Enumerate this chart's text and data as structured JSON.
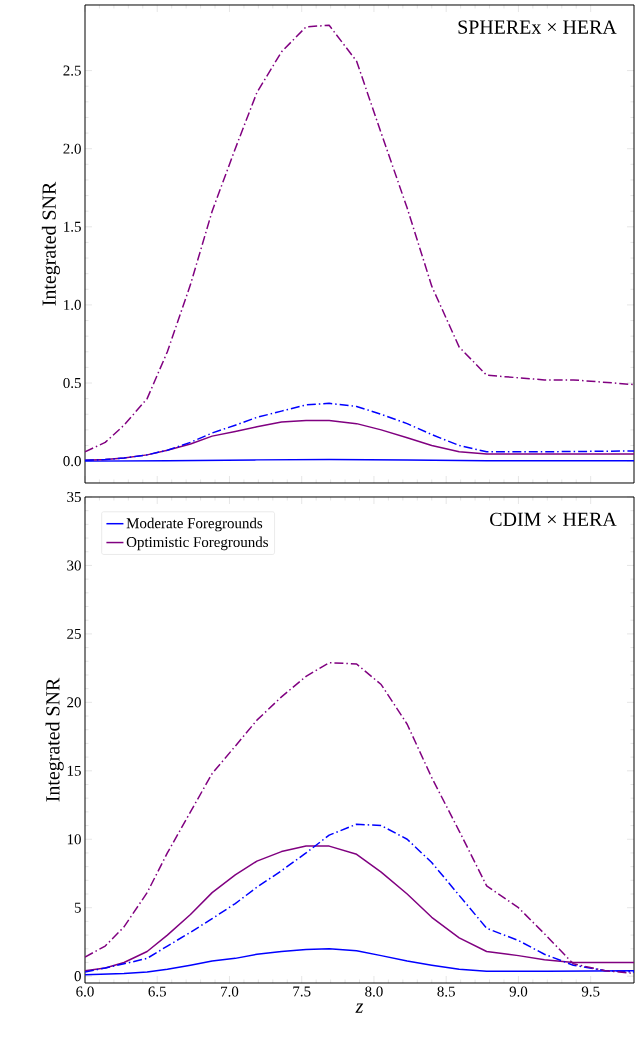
{
  "chart_data": [
    {
      "type": "line",
      "ylabel": "Integrated SNR",
      "annotations": [
        "SPHEREx × HERA"
      ],
      "xlim": [
        6.0,
        9.8
      ],
      "ylim": [
        -0.14,
        2.92
      ],
      "xticks": [
        {
          "value": 6.0,
          "label": null
        },
        {
          "value": 6.5,
          "label": null
        },
        {
          "value": 7.0,
          "label": null
        },
        {
          "value": 7.5,
          "label": null
        },
        {
          "value": 8.0,
          "label": null
        },
        {
          "value": 8.5,
          "label": null
        },
        {
          "value": 9.0,
          "label": null
        },
        {
          "value": 9.5,
          "label": null
        }
      ],
      "yticks": [
        {
          "value": 0,
          "label": "0.0"
        },
        {
          "value": 0.5,
          "label": "0.5"
        },
        {
          "value": 1.0,
          "label": "1.0"
        },
        {
          "value": 1.5,
          "label": "1.5"
        },
        {
          "value": 2.0,
          "label": "2.0"
        },
        {
          "value": 2.5,
          "label": "2.5"
        }
      ],
      "tick_labels": "y",
      "grid": false,
      "legend": false,
      "marker": "none",
      "series": [
        {
          "color": "#0000ff",
          "line_style": "solid",
          "x": [
            6.0,
            6.57,
            7.19,
            7.69,
            8.23,
            8.78,
            9.8
          ],
          "values": [
            0.0,
            0.003,
            0.008,
            0.01,
            0.007,
            0.002,
            0.002
          ]
        },
        {
          "color": "#800080",
          "line_style": "solid",
          "x": [
            6.0,
            6.14,
            6.27,
            6.43,
            6.57,
            6.73,
            6.88,
            7.04,
            7.19,
            7.36,
            7.53,
            7.69,
            7.88,
            8.05,
            8.23,
            8.4,
            8.59,
            8.78,
            9.8
          ],
          "values": [
            0.005,
            0.01,
            0.02,
            0.04,
            0.07,
            0.11,
            0.16,
            0.19,
            0.22,
            0.25,
            0.26,
            0.26,
            0.24,
            0.2,
            0.15,
            0.1,
            0.06,
            0.045,
            0.045
          ]
        },
        {
          "color": "#0000ff",
          "line_style": "dashdot",
          "x": [
            6.0,
            6.14,
            6.27,
            6.43,
            6.57,
            6.73,
            6.88,
            7.04,
            7.19,
            7.36,
            7.53,
            7.69,
            7.88,
            8.05,
            8.23,
            8.4,
            8.59,
            8.78,
            9.18,
            9.8
          ],
          "values": [
            0.005,
            0.01,
            0.02,
            0.04,
            0.07,
            0.12,
            0.18,
            0.23,
            0.28,
            0.32,
            0.36,
            0.37,
            0.35,
            0.3,
            0.24,
            0.17,
            0.1,
            0.06,
            0.06,
            0.065
          ]
        },
        {
          "color": "#800080",
          "line_style": "dashdot",
          "x": [
            6.0,
            6.14,
            6.27,
            6.43,
            6.57,
            6.73,
            6.88,
            7.04,
            7.19,
            7.36,
            7.53,
            7.69,
            7.88,
            8.05,
            8.23,
            8.4,
            8.59,
            8.78,
            9.18,
            9.38,
            9.8
          ],
          "values": [
            0.06,
            0.12,
            0.23,
            0.4,
            0.7,
            1.13,
            1.6,
            2.0,
            2.36,
            2.62,
            2.78,
            2.79,
            2.56,
            2.1,
            1.62,
            1.12,
            0.73,
            0.55,
            0.52,
            0.52,
            0.49
          ]
        }
      ]
    },
    {
      "type": "line",
      "xlabel": "z",
      "ylabel": "Integrated SNR",
      "annotations": [
        "CDIM × HERA"
      ],
      "xlim": [
        6.0,
        9.8
      ],
      "ylim": [
        -0.5,
        35
      ],
      "xticks": [
        {
          "value": 6.0,
          "label": "6.0"
        },
        {
          "value": 6.5,
          "label": "6.5"
        },
        {
          "value": 7.0,
          "label": "7.0"
        },
        {
          "value": 7.5,
          "label": "7.5"
        },
        {
          "value": 8.0,
          "label": "8.0"
        },
        {
          "value": 8.5,
          "label": "8.5"
        },
        {
          "value": 9.0,
          "label": "9.0"
        },
        {
          "value": 9.5,
          "label": "9.5"
        }
      ],
      "yticks": [
        0,
        5,
        10,
        15,
        20,
        25,
        30,
        35
      ],
      "grid": false,
      "legend": "top left",
      "marker": "none",
      "series": [
        {
          "name": "Moderate Foregrounds",
          "color": "#0000ff",
          "line_style": "solid",
          "x": [
            6.0,
            6.27,
            6.43,
            6.57,
            6.73,
            6.88,
            7.04,
            7.19,
            7.36,
            7.53,
            7.69,
            7.88,
            8.05,
            8.23,
            8.4,
            8.59,
            8.78,
            9.2,
            9.8
          ],
          "values": [
            0.1,
            0.2,
            0.3,
            0.5,
            0.8,
            1.1,
            1.3,
            1.6,
            1.8,
            1.95,
            2.0,
            1.85,
            1.5,
            1.1,
            0.8,
            0.5,
            0.35,
            0.35,
            0.4
          ]
        },
        {
          "name": "Optimistic Foregrounds",
          "color": "#800080",
          "line_style": "solid",
          "x": [
            6.0,
            6.14,
            6.27,
            6.43,
            6.57,
            6.73,
            6.88,
            7.04,
            7.19,
            7.36,
            7.53,
            7.69,
            7.88,
            8.05,
            8.23,
            8.4,
            8.59,
            8.78,
            9.0,
            9.18,
            9.38,
            9.6,
            9.8
          ],
          "values": [
            0.4,
            0.6,
            1.0,
            1.8,
            3.0,
            4.5,
            6.1,
            7.4,
            8.4,
            9.1,
            9.5,
            9.5,
            8.9,
            7.6,
            6.0,
            4.3,
            2.8,
            1.8,
            1.5,
            1.2,
            1.0,
            1.0,
            1.0
          ]
        },
        {
          "color": "#0000ff",
          "line_style": "dashdot",
          "x": [
            6.0,
            6.14,
            6.27,
            6.43,
            6.57,
            6.73,
            6.88,
            7.04,
            7.19,
            7.36,
            7.53,
            7.69,
            7.88,
            8.05,
            8.23,
            8.4,
            8.59,
            8.78,
            9.0,
            9.18,
            9.38,
            9.6,
            9.8
          ],
          "values": [
            0.3,
            0.6,
            0.9,
            1.3,
            2.2,
            3.2,
            4.2,
            5.3,
            6.5,
            7.7,
            9.0,
            10.3,
            11.1,
            11.0,
            10.0,
            8.3,
            5.9,
            3.5,
            2.6,
            1.6,
            0.8,
            0.4,
            0.3
          ]
        },
        {
          "color": "#800080",
          "line_style": "dashdot",
          "x": [
            6.0,
            6.14,
            6.27,
            6.43,
            6.57,
            6.73,
            6.88,
            7.04,
            7.19,
            7.36,
            7.53,
            7.69,
            7.88,
            8.05,
            8.23,
            8.4,
            8.59,
            8.78,
            9.0,
            9.18,
            9.38,
            9.6,
            9.8
          ],
          "values": [
            1.4,
            2.2,
            3.6,
            6.1,
            9.0,
            12.0,
            14.8,
            16.8,
            18.7,
            20.4,
            21.9,
            22.9,
            22.8,
            21.3,
            18.4,
            14.5,
            10.6,
            6.6,
            5.0,
            3.1,
            0.9,
            0.4,
            0.2
          ]
        }
      ]
    }
  ]
}
